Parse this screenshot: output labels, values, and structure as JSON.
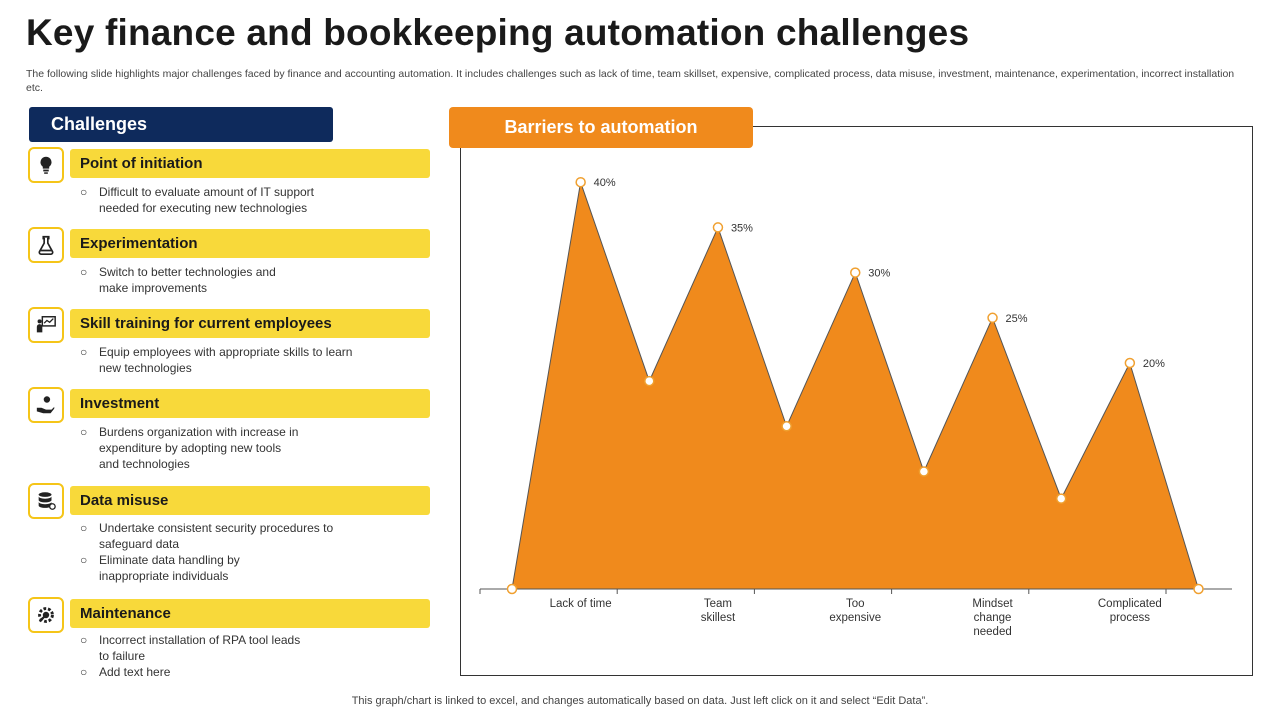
{
  "title": "Key finance and bookkeeping automation challenges",
  "subtitle": "The following slide highlights major challenges faced by finance and accounting automation. It includes challenges such as lack of time, team skillset, expensive, complicated process, data misuse, investment, maintenance, experimentation, incorrect installation etc.",
  "challenges_header": "Challenges",
  "barriers_header": "Barriers to automation",
  "footer": "This graph/chart is linked to excel,  and changes automatically based on data. Just left click on it and select “Edit Data”.",
  "challenges": [
    {
      "title": "Point of initiation",
      "icon": "lightbulb-icon",
      "bullets": [
        "Difficult to evaluate  amount of IT support\nneeded for executing new technologies"
      ]
    },
    {
      "title": "Experimentation",
      "icon": "lab-flask-icon",
      "bullets": [
        "Switch to better technologies and\nmake improvements"
      ]
    },
    {
      "title": "Skill training for current employees",
      "icon": "presentation-training-icon",
      "bullets": [
        "Equip employees with appropriate skills to learn\nnew technologies"
      ]
    },
    {
      "title": "Investment",
      "icon": "hand-money-icon",
      "bullets": [
        "Burdens organization with increase in\nexpenditure by adopting new tools\nand technologies"
      ]
    },
    {
      "title": "Data misuse",
      "icon": "database-icon",
      "bullets": [
        "Undertake consistent security procedures to\nsafeguard data",
        "Eliminate data handling by\ninappropriate  individuals"
      ]
    },
    {
      "title": "Maintenance",
      "icon": "gear-wrench-icon",
      "bullets": [
        "Incorrect installation of RPA tool leads\nto failure",
        "Add text here"
      ]
    }
  ],
  "chart_data": {
    "type": "area",
    "title": "",
    "categories": [
      "Lack of time",
      "Team\nskillest",
      "Too\nexpensive",
      "Mindset\nchange\nneeded",
      "Complicated\nprocess"
    ],
    "values": [
      40,
      35,
      30,
      25,
      20
    ],
    "value_labels": [
      "40%",
      "35%",
      "30%",
      "25%",
      "20%"
    ],
    "troughs": [
      18,
      13,
      8,
      5
    ],
    "ylim": [
      -5,
      45
    ],
    "grid": false,
    "legend": "none",
    "colors": {
      "fill": "#f08a1c",
      "stroke": "#555555",
      "marker": "#f0a030"
    }
  },
  "colors": {
    "navy": "#0e2a5c",
    "yellow": "#f8d93a",
    "orange": "#f08a1c"
  }
}
